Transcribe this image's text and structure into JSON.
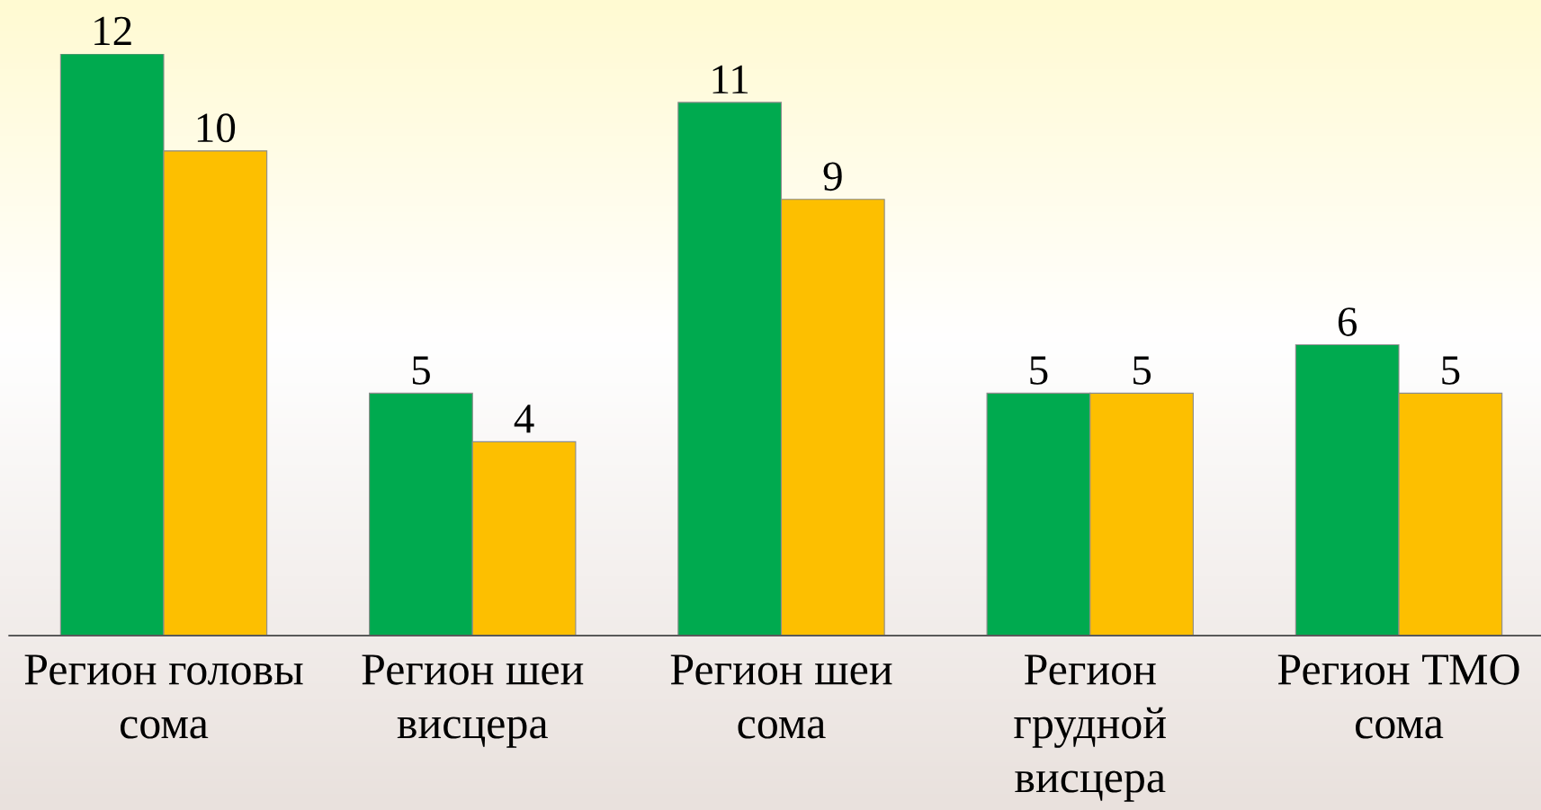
{
  "chart_data": {
    "type": "bar",
    "categories": [
      "Регион головы\nсома",
      "Регион шеи\nвисцера",
      "Регион шеи\nсома",
      "Регион\nгрудной\nвисцера",
      "Регион ТМО\nсома"
    ],
    "series": [
      {
        "color": "#00aa4f",
        "values": [
          12,
          5,
          11,
          5,
          6
        ]
      },
      {
        "color": "#fdbf00",
        "values": [
          10,
          4,
          9,
          5,
          5
        ]
      }
    ],
    "data_labels": true,
    "tick_labels": "x",
    "grid": false,
    "legend": false
  }
}
